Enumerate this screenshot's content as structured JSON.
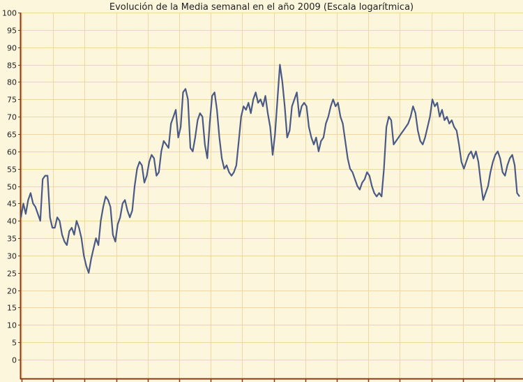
{
  "chart_data": {
    "type": "line",
    "title": "Evolución de la Media semanal en el año 2009 (Escala logarítmica)",
    "xlabel": "",
    "ylabel": "",
    "ylim": [
      0,
      100
    ],
    "yticks": [
      "0",
      "5",
      "10",
      "15",
      "20",
      "25",
      "30",
      "35",
      "40",
      "45",
      "50",
      "55",
      "60",
      "65",
      "70",
      "75",
      "80",
      "85",
      "90",
      "95",
      "100"
    ],
    "grid": true,
    "colors": {
      "line": "#4a5a85",
      "grid": "#f1d7a2",
      "axis": "#8a3a10",
      "background": "#fbf6dc"
    },
    "series": [
      {
        "values": [
          41,
          45,
          42,
          46,
          48,
          45,
          44,
          42,
          40,
          52,
          53,
          53,
          41,
          38,
          38,
          41,
          40,
          36,
          34,
          33,
          37,
          38,
          36,
          40,
          38,
          35,
          30,
          27,
          25,
          29,
          32,
          35,
          33,
          40,
          44,
          47,
          46,
          44,
          36,
          34,
          39,
          41,
          45,
          46,
          43,
          41,
          43,
          50,
          55,
          57,
          56,
          51,
          53,
          57,
          59,
          58,
          53,
          54,
          60,
          63,
          62,
          61,
          68,
          70,
          72,
          64,
          67,
          77,
          78,
          75,
          61,
          60,
          64,
          69,
          71,
          70,
          62,
          58,
          68,
          76,
          77,
          72,
          64,
          58,
          55,
          56,
          54,
          53,
          54,
          56,
          63,
          70,
          73,
          72,
          74,
          71,
          75,
          77,
          74,
          75,
          73,
          76,
          71,
          67,
          59,
          65,
          75,
          85,
          80,
          73,
          64,
          66,
          73,
          75,
          77,
          70,
          73,
          74,
          73,
          67,
          64,
          62,
          64,
          60,
          63,
          64,
          68,
          70,
          73,
          75,
          73,
          74,
          70,
          68,
          63,
          58,
          55,
          54,
          52,
          50,
          49,
          51,
          52,
          54,
          53,
          50,
          48,
          47,
          48,
          47,
          55,
          67,
          70,
          69,
          62,
          63,
          64,
          65,
          66,
          67,
          68,
          70,
          73,
          71,
          66,
          63,
          62,
          64,
          67,
          70,
          75,
          73,
          74,
          70,
          72,
          69,
          70,
          68,
          69,
          67,
          66,
          62,
          57,
          55,
          57,
          59,
          60,
          58,
          60,
          57,
          51,
          46,
          48,
          50,
          54,
          57,
          59,
          60,
          58,
          54,
          53,
          56,
          58,
          59,
          56,
          48,
          47
        ]
      }
    ]
  }
}
